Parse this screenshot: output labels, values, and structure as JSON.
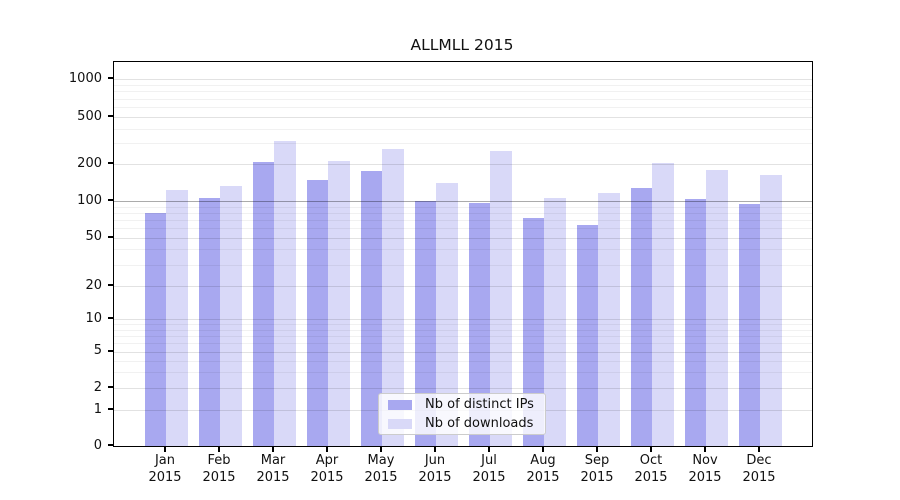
{
  "title": "ALLMLL 2015",
  "chart_data": {
    "type": "bar",
    "title": "ALLMLL 2015",
    "yscale": "symlog",
    "grid": true,
    "legend_position": "lower center",
    "categories": [
      "Jan 2015",
      "Feb 2015",
      "Mar 2015",
      "Apr 2015",
      "May 2015",
      "Jun 2015",
      "Jul 2015",
      "Aug 2015",
      "Sep 2015",
      "Oct 2015",
      "Nov 2015",
      "Dec 2015"
    ],
    "x_tick_months": [
      "Jan",
      "Feb",
      "Mar",
      "Apr",
      "May",
      "Jun",
      "Jul",
      "Aug",
      "Sep",
      "Oct",
      "Nov",
      "Dec"
    ],
    "x_tick_year": "2015",
    "y_ticks": [
      0,
      1,
      2,
      5,
      10,
      20,
      50,
      100,
      200,
      500,
      1000
    ],
    "ylim": [
      0,
      1400
    ],
    "series": [
      {
        "name": "Nb of distinct IPs",
        "color": "#a8a8f0",
        "values": [
          80,
          105,
          210,
          150,
          177,
          100,
          96,
          72,
          64,
          129,
          103,
          95
        ]
      },
      {
        "name": "Nb of downloads",
        "color": "#d9d9f8",
        "values": [
          122,
          133,
          315,
          213,
          268,
          140,
          258,
          106,
          117,
          207,
          180,
          163
        ]
      }
    ]
  }
}
